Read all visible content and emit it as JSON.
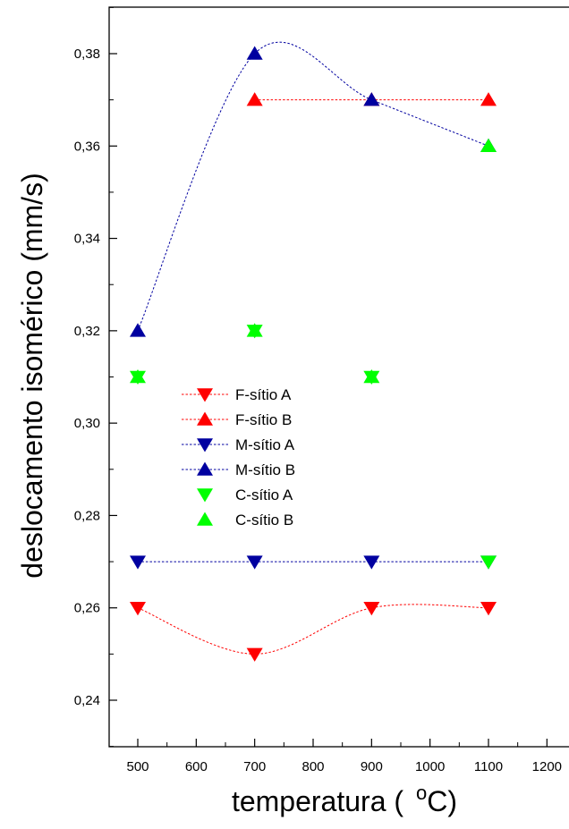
{
  "chart_data": {
    "type": "scatter",
    "xlabel": "temperatura",
    "xlabel_unit_sup": "o",
    "xlabel_unit": "C",
    "ylabel": "deslocamento isomérico (mm/s)",
    "xlim": [
      450,
      1225
    ],
    "ylim": [
      0.23,
      0.39
    ],
    "x_ticks": [
      500,
      600,
      700,
      800,
      900,
      1000,
      1100,
      1200
    ],
    "y_ticks": [
      0.24,
      0.26,
      0.28,
      0.3,
      0.32,
      0.34,
      0.36,
      0.38
    ],
    "y_tick_labels": [
      "0,24",
      "0,26",
      "0,28",
      "0,30",
      "0,32",
      "0,34",
      "0,36",
      "0,38"
    ],
    "grid": false,
    "legend_position": "center-left",
    "series": [
      {
        "name": "F-sítio A",
        "marker": "triangle-down",
        "color": "#ff0000",
        "line": "dotted-spline",
        "x": [
          500,
          700,
          900,
          1100
        ],
        "y": [
          0.26,
          0.25,
          0.26,
          0.26
        ]
      },
      {
        "name": "F-sítio B",
        "marker": "triangle-up",
        "color": "#ff0000",
        "line": "dotted-spline",
        "x": [
          700,
          900,
          1100
        ],
        "y": [
          0.37,
          0.37,
          0.37
        ]
      },
      {
        "name": "M-sítio A",
        "marker": "triangle-down",
        "color": "#0000a0",
        "line": "dotted-spline",
        "x": [
          500,
          700,
          900,
          1100
        ],
        "y": [
          0.27,
          0.27,
          0.27,
          0.27
        ]
      },
      {
        "name": "M-sítio B",
        "marker": "triangle-up",
        "color": "#0000a0",
        "line": "dotted-spline",
        "x": [
          500,
          700,
          900,
          1100
        ],
        "y": [
          0.32,
          0.38,
          0.37,
          0.36
        ]
      },
      {
        "name": "C-sítio A",
        "marker": "triangle-down",
        "color": "#00ff00",
        "line": "none",
        "x": [
          500,
          700,
          900,
          1100
        ],
        "y": [
          0.31,
          0.32,
          0.31,
          0.27
        ]
      },
      {
        "name": "C-sítio B",
        "marker": "triangle-up",
        "color": "#00ff00",
        "line": "none",
        "x": [
          500,
          700,
          900,
          1100
        ],
        "y": [
          0.31,
          0.32,
          0.31,
          0.36
        ]
      }
    ]
  }
}
